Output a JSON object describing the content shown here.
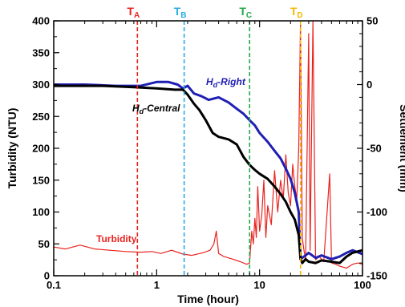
{
  "chart_data": {
    "type": "line",
    "xlabel": "Time (hour)",
    "ylabel_left": "Turbidity (NTU)",
    "ylabel_right": "Settlement (mm)",
    "x_scale": "log",
    "xlim": [
      0.1,
      100
    ],
    "ylim_left": [
      0,
      400
    ],
    "ylim_right": [
      -150,
      50
    ],
    "x_ticks": [
      0.1,
      1,
      10,
      100
    ],
    "x_tick_labels": [
      "0.1",
      "1",
      "10",
      "100"
    ],
    "y_left_ticks": [
      0,
      50,
      100,
      150,
      200,
      250,
      300,
      350,
      400
    ],
    "y_left_tick_labels": [
      "0",
      "50",
      "100",
      "150",
      "200",
      "250",
      "300",
      "350",
      "400"
    ],
    "y_right_ticks": [
      -150,
      -100,
      -50,
      0,
      50
    ],
    "y_right_tick_labels": [
      "-150",
      "-100",
      "-50",
      "0",
      "50"
    ],
    "grid": false,
    "markers": [
      {
        "main": "T",
        "sub": "A",
        "x": 0.65,
        "color": "#e8231f"
      },
      {
        "main": "T",
        "sub": "B",
        "x": 1.85,
        "color": "#29abe2"
      },
      {
        "main": "T",
        "sub": "C",
        "x": 8.0,
        "color": "#22a84a"
      },
      {
        "main": "T",
        "sub": "D",
        "x": 25.0,
        "color": "#f5b800"
      }
    ],
    "series": [
      {
        "name": "Turbidity",
        "axis": "left",
        "color": "#e8231f",
        "points": [
          [
            0.1,
            45
          ],
          [
            0.13,
            42
          ],
          [
            0.18,
            48
          ],
          [
            0.25,
            42
          ],
          [
            0.35,
            40
          ],
          [
            0.5,
            38
          ],
          [
            0.7,
            37
          ],
          [
            0.9,
            38
          ],
          [
            1.1,
            35
          ],
          [
            1.4,
            40
          ],
          [
            1.8,
            34
          ],
          [
            2.2,
            32
          ],
          [
            2.8,
            36
          ],
          [
            3.3,
            40
          ],
          [
            3.6,
            50
          ],
          [
            3.8,
            70
          ],
          [
            4.0,
            35
          ],
          [
            4.5,
            30
          ],
          [
            5.5,
            26
          ],
          [
            6.5,
            22
          ],
          [
            7.5,
            18
          ],
          [
            8.0,
            20
          ],
          [
            8.4,
            70
          ],
          [
            8.7,
            50
          ],
          [
            9.0,
            90
          ],
          [
            9.3,
            60
          ],
          [
            9.6,
            140
          ],
          [
            10,
            70
          ],
          [
            10.5,
            95
          ],
          [
            11,
            150
          ],
          [
            11.5,
            60
          ],
          [
            12,
            110
          ],
          [
            13,
            80
          ],
          [
            14,
            165
          ],
          [
            15,
            100
          ],
          [
            16,
            150
          ],
          [
            17,
            120
          ],
          [
            18,
            190
          ],
          [
            19,
            130
          ],
          [
            20,
            110
          ],
          [
            21,
            175
          ],
          [
            22,
            140
          ],
          [
            23,
            120
          ],
          [
            24,
            200
          ],
          [
            25,
            400
          ],
          [
            26,
            60
          ],
          [
            27,
            40
          ],
          [
            28,
            25
          ],
          [
            30,
            380
          ],
          [
            31,
            40
          ],
          [
            33,
            400
          ],
          [
            35,
            25
          ],
          [
            38,
            30
          ],
          [
            42,
            22
          ],
          [
            48,
            160
          ],
          [
            50,
            20
          ],
          [
            55,
            18
          ],
          [
            60,
            15
          ],
          [
            70,
            12
          ],
          [
            80,
            18
          ],
          [
            90,
            20
          ],
          [
            100,
            18
          ]
        ]
      },
      {
        "name": "H_d-Right",
        "label_main": "H",
        "label_sub": "d",
        "label_rest": "-Right",
        "axis": "right",
        "color": "#1f1fb4",
        "points": [
          [
            0.1,
            0
          ],
          [
            0.2,
            0
          ],
          [
            0.4,
            -1
          ],
          [
            0.7,
            -1
          ],
          [
            1.0,
            2
          ],
          [
            1.3,
            2
          ],
          [
            1.6,
            0
          ],
          [
            1.8,
            -3
          ],
          [
            2.0,
            -1
          ],
          [
            2.3,
            -7
          ],
          [
            2.7,
            -9
          ],
          [
            3.2,
            -12
          ],
          [
            4.0,
            -10
          ],
          [
            5.0,
            -14
          ],
          [
            6.0,
            -19
          ],
          [
            7.0,
            -23
          ],
          [
            8.0,
            -28
          ],
          [
            9.0,
            -32
          ],
          [
            10,
            -38
          ],
          [
            12,
            -45
          ],
          [
            14,
            -52
          ],
          [
            16,
            -58
          ],
          [
            18,
            -66
          ],
          [
            20,
            -74
          ],
          [
            22,
            -85
          ],
          [
            24,
            -100
          ],
          [
            25,
            -135
          ],
          [
            26,
            -136
          ],
          [
            28,
            -134
          ],
          [
            30,
            -132
          ],
          [
            35,
            -136
          ],
          [
            40,
            -134
          ],
          [
            50,
            -137
          ],
          [
            60,
            -135
          ],
          [
            70,
            -132
          ],
          [
            80,
            -130
          ],
          [
            100,
            -133
          ]
        ]
      },
      {
        "name": "H_d-Central",
        "label_main": "H",
        "label_sub": "d",
        "label_rest": "-Central",
        "axis": "right",
        "color": "#000000",
        "points": [
          [
            0.1,
            -1
          ],
          [
            0.3,
            -1
          ],
          [
            0.6,
            -2
          ],
          [
            1.0,
            -3
          ],
          [
            1.5,
            -4
          ],
          [
            1.8,
            -4
          ],
          [
            2.0,
            -8
          ],
          [
            2.3,
            -15
          ],
          [
            2.6,
            -20
          ],
          [
            3.0,
            -28
          ],
          [
            3.5,
            -38
          ],
          [
            4.0,
            -41
          ],
          [
            5.0,
            -43
          ],
          [
            6.0,
            -47
          ],
          [
            7.0,
            -57
          ],
          [
            8.0,
            -63
          ],
          [
            9.0,
            -67
          ],
          [
            10,
            -70
          ],
          [
            12,
            -74
          ],
          [
            14,
            -80
          ],
          [
            16,
            -86
          ],
          [
            18,
            -92
          ],
          [
            20,
            -100
          ],
          [
            22,
            -106
          ],
          [
            24,
            -118
          ],
          [
            25,
            -137
          ],
          [
            26,
            -140
          ],
          [
            28,
            -137
          ],
          [
            30,
            -139
          ],
          [
            35,
            -140
          ],
          [
            40,
            -138
          ],
          [
            50,
            -139
          ],
          [
            60,
            -140
          ],
          [
            70,
            -135
          ],
          [
            80,
            -132
          ],
          [
            100,
            -130
          ]
        ]
      }
    ]
  }
}
